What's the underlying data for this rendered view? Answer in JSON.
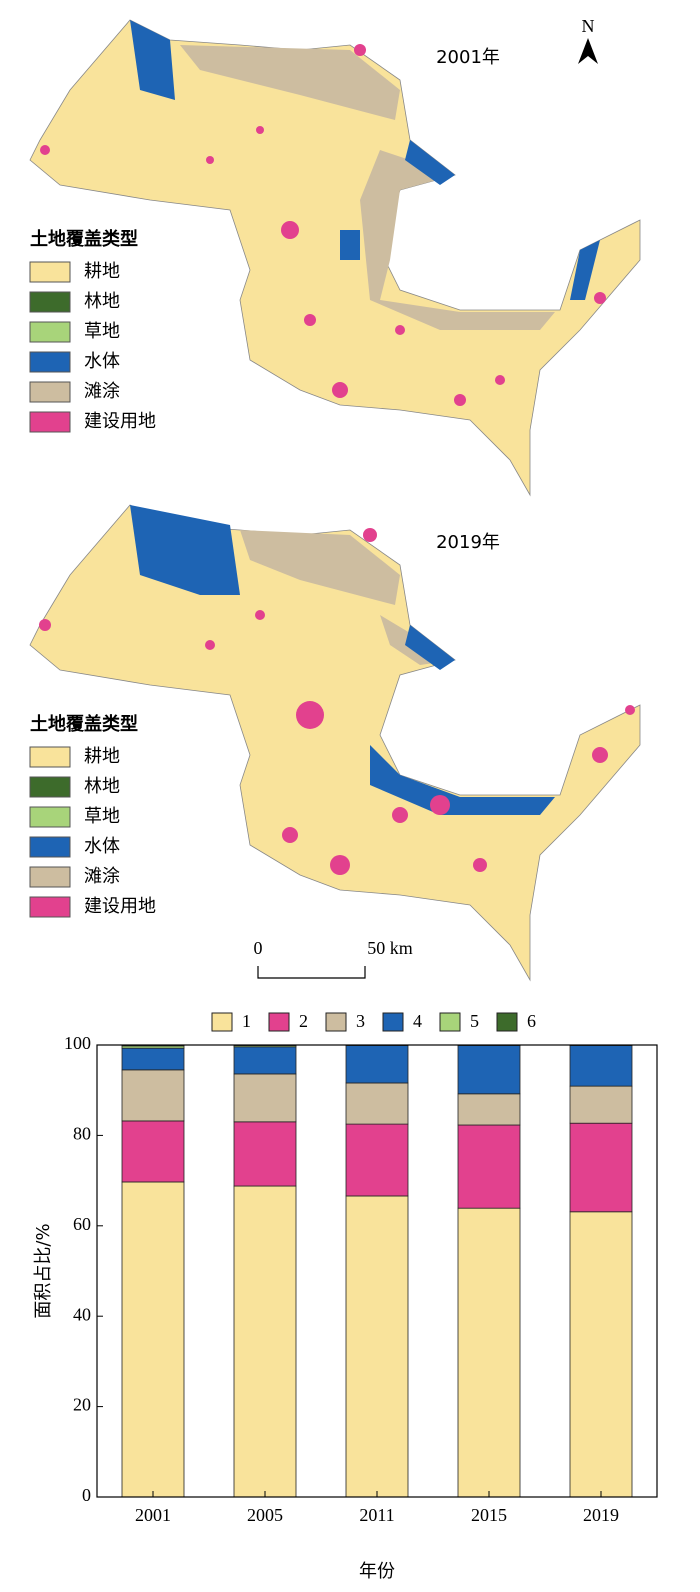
{
  "maps": [
    {
      "title": "2001年",
      "legend_title": "土地覆盖类型",
      "legend": [
        {
          "name": "耕地",
          "color": "#f9e39b"
        },
        {
          "name": "林地",
          "color": "#3d6b2b"
        },
        {
          "name": "草地",
          "color": "#a8d47a"
        },
        {
          "name": "水体",
          "color": "#1e64b4"
        },
        {
          "name": "滩涂",
          "color": "#cdbda0"
        },
        {
          "name": "建设用地",
          "color": "#e2418e"
        }
      ]
    },
    {
      "title": "2019年",
      "legend_title": "土地覆盖类型",
      "legend": [
        {
          "name": "耕地",
          "color": "#f9e39b"
        },
        {
          "name": "林地",
          "color": "#3d6b2b"
        },
        {
          "name": "草地",
          "color": "#a8d47a"
        },
        {
          "name": "水体",
          "color": "#1e64b4"
        },
        {
          "name": "滩涂",
          "color": "#cdbda0"
        },
        {
          "name": "建设用地",
          "color": "#e2418e"
        }
      ]
    }
  ],
  "north": "N",
  "scale": {
    "labels": [
      "0",
      "50 km"
    ]
  },
  "chart_data": {
    "type": "stacked_bar",
    "ylabel": "面积占比/%",
    "xlabel": "年份",
    "categories": [
      "2001",
      "2005",
      "2011",
      "2015",
      "2019"
    ],
    "ylim": [
      0,
      100
    ],
    "yticks": [
      0,
      20,
      40,
      60,
      80,
      100
    ],
    "series": [
      {
        "name": "1",
        "color": "#f9e39b",
        "values": [
          69.7,
          68.8,
          66.6,
          63.9,
          63.1
        ]
      },
      {
        "name": "2",
        "color": "#e2418e",
        "values": [
          13.5,
          14.2,
          15.9,
          18.4,
          19.6
        ]
      },
      {
        "name": "3",
        "color": "#cdbda0",
        "values": [
          11.3,
          10.6,
          9.1,
          6.9,
          8.2
        ]
      },
      {
        "name": "4",
        "color": "#1e64b4",
        "values": [
          4.8,
          6.0,
          8.3,
          10.7,
          9.0
        ]
      },
      {
        "name": "5",
        "color": "#a8d47a",
        "values": [
          0.5,
          0.3,
          0.1,
          0.1,
          0.1
        ]
      },
      {
        "name": "6",
        "color": "#3d6b2b",
        "values": [
          0.2,
          0.1,
          0.0,
          0.0,
          0.0
        ]
      }
    ]
  }
}
